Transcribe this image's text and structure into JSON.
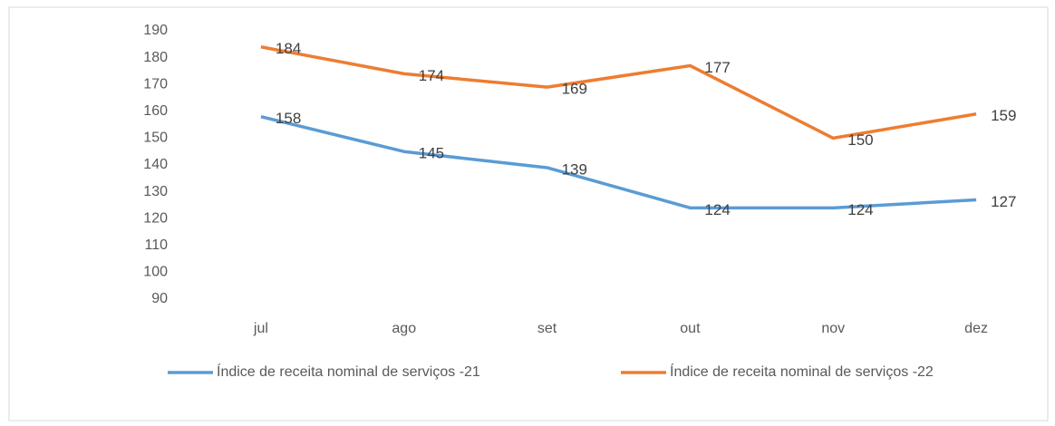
{
  "chart_data": {
    "type": "line",
    "categories": [
      "jul",
      "ago",
      "set",
      "out",
      "nov",
      "dez"
    ],
    "series": [
      {
        "name": "Índice de receita nominal de serviços -21",
        "color": "#5b9bd5",
        "values": [
          158,
          145,
          139,
          124,
          124,
          127
        ]
      },
      {
        "name": "Índice de receita nominal de serviços -22",
        "color": "#ed7d31",
        "values": [
          184,
          174,
          169,
          177,
          150,
          159
        ]
      }
    ],
    "ylim": [
      90,
      190
    ],
    "yticks": [
      90,
      100,
      110,
      120,
      130,
      140,
      150,
      160,
      170,
      180,
      190
    ],
    "grid": false,
    "legend": "bottom"
  }
}
